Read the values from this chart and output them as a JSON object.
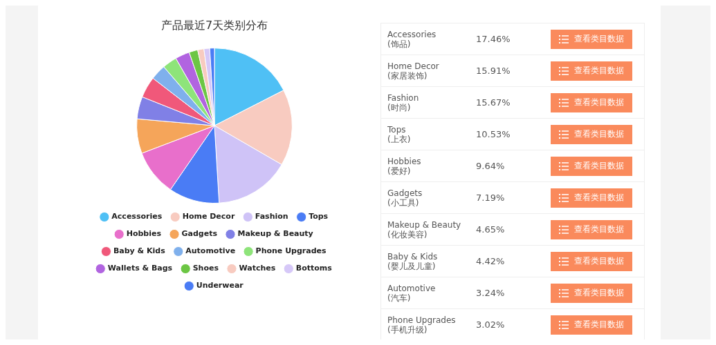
{
  "chart_data": [
    {
      "type": "pie",
      "title": "产品最近7天类别分布",
      "legend": "bottom",
      "categories": [
        "Accessories",
        "Home Decor",
        "Fashion",
        "Tops",
        "Hobbies",
        "Gadgets",
        "Makeup & Beauty",
        "Baby & Kids",
        "Automotive",
        "Phone Upgrades",
        "Wallets & Bags",
        "Shoes",
        "Watches",
        "Bottoms",
        "Underwear"
      ],
      "values": [
        17.46,
        15.91,
        15.67,
        10.53,
        9.64,
        7.19,
        4.65,
        4.42,
        3.24,
        3.02,
        3.0,
        1.8,
        1.3,
        1.2,
        0.97
      ],
      "colors": [
        "#4fc0f5",
        "#f8cbc0",
        "#cfc3f7",
        "#4a7cf5",
        "#e86fcb",
        "#f5a55a",
        "#8080e6",
        "#f0587a",
        "#7fb0ec",
        "#8ee47a",
        "#b164e0",
        "#6cc644",
        "#f8cbc0",
        "#d6c8f8",
        "#4a7cf5"
      ]
    },
    {
      "type": "other",
      "categories": [
        "Accessories",
        "Home Decor",
        "Fashion",
        "Tops",
        "Hobbies",
        "Gadgets",
        "Makeup & Beauty",
        "Baby & Kids",
        "Automotive",
        "Phone Upgrades"
      ],
      "value_labels": [
        "17.46%",
        "15.91%",
        "15.67%",
        "10.53%",
        "9.64%",
        "7.19%",
        "4.65%",
        "4.42%",
        "3.24%",
        "3.02%"
      ],
      "annotations": [
        "查看类目数据",
        "(饰品)",
        "(家居装饰)",
        "(时尚)",
        "(上衣)",
        "(爱好)",
        "(小工具)",
        "(化妆美容)",
        "(婴儿及儿童)",
        "(汽车)",
        "(手机升级)"
      ]
    }
  ]
}
